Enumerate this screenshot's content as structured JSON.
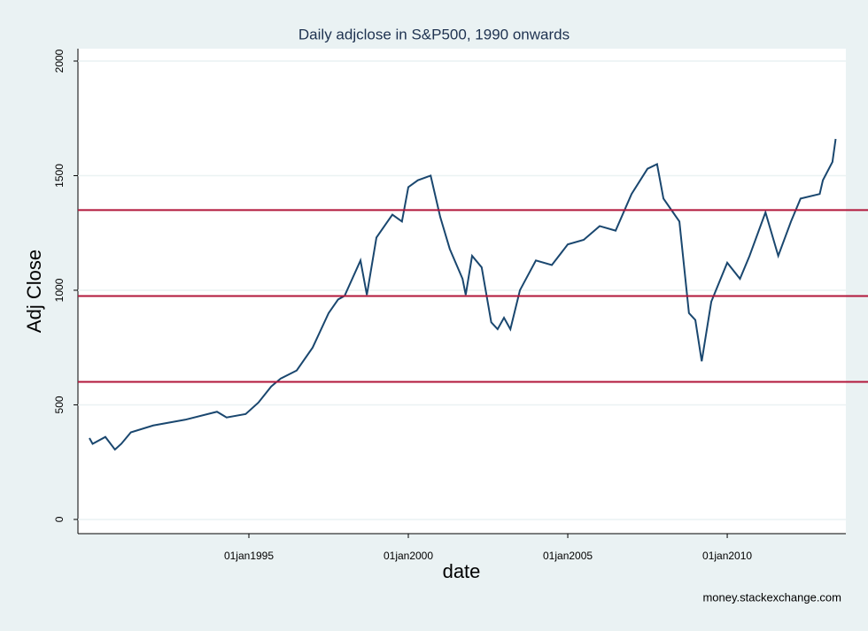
{
  "chart_data": {
    "type": "line",
    "title": "Daily adjclose in S&P500, 1990 onwards",
    "x_label": "date",
    "y_label": "Adj Close",
    "note": "money.stackexchange.com",
    "xlim": [
      1989.64,
      2013.72
    ],
    "ylim": [
      -62,
      2054
    ],
    "xticks": [
      {
        "value": 1995,
        "label": "01jan1995"
      },
      {
        "value": 2000,
        "label": "01jan2000"
      },
      {
        "value": 2005,
        "label": "01jan2005"
      },
      {
        "value": 2010,
        "label": "01jan2010"
      }
    ],
    "yticks": [
      0,
      500,
      1000,
      1500,
      2000
    ],
    "grid": true,
    "reference_lines": {
      "color": "#b2163a",
      "values": [
        1350,
        975,
        600
      ]
    },
    "series": [
      {
        "name": "Adj Close",
        "color": "#1a476f",
        "x": [
          1990.0,
          1990.1,
          1990.5,
          1990.8,
          1991.0,
          1991.3,
          1992.0,
          1993.0,
          1994.0,
          1994.3,
          1994.9,
          1995.3,
          1995.7,
          1996.0,
          1996.5,
          1997.0,
          1997.5,
          1997.8,
          1998.0,
          1998.5,
          1998.7,
          1999.0,
          1999.5,
          1999.8,
          2000.0,
          2000.3,
          2000.7,
          2001.0,
          2001.3,
          2001.7,
          2001.8,
          2002.0,
          2002.3,
          2002.6,
          2002.8,
          2003.0,
          2003.2,
          2003.5,
          2004.0,
          2004.5,
          2005.0,
          2005.5,
          2006.0,
          2006.5,
          2007.0,
          2007.5,
          2007.8,
          2008.0,
          2008.5,
          2008.8,
          2009.0,
          2009.2,
          2009.5,
          2010.0,
          2010.4,
          2010.7,
          2011.2,
          2011.6,
          2012.0,
          2012.3,
          2012.9,
          2013.0,
          2013.3,
          2013.4
        ],
        "values": [
          355,
          330,
          360,
          305,
          330,
          380,
          410,
          435,
          470,
          445,
          460,
          510,
          580,
          615,
          650,
          750,
          900,
          960,
          975,
          1130,
          980,
          1230,
          1330,
          1300,
          1450,
          1480,
          1500,
          1320,
          1180,
          1050,
          980,
          1150,
          1100,
          860,
          830,
          880,
          830,
          1000,
          1130,
          1110,
          1200,
          1220,
          1280,
          1260,
          1420,
          1530,
          1550,
          1400,
          1300,
          900,
          870,
          690,
          950,
          1120,
          1050,
          1150,
          1340,
          1150,
          1300,
          1400,
          1420,
          1480,
          1560,
          1660
        ]
      }
    ]
  }
}
